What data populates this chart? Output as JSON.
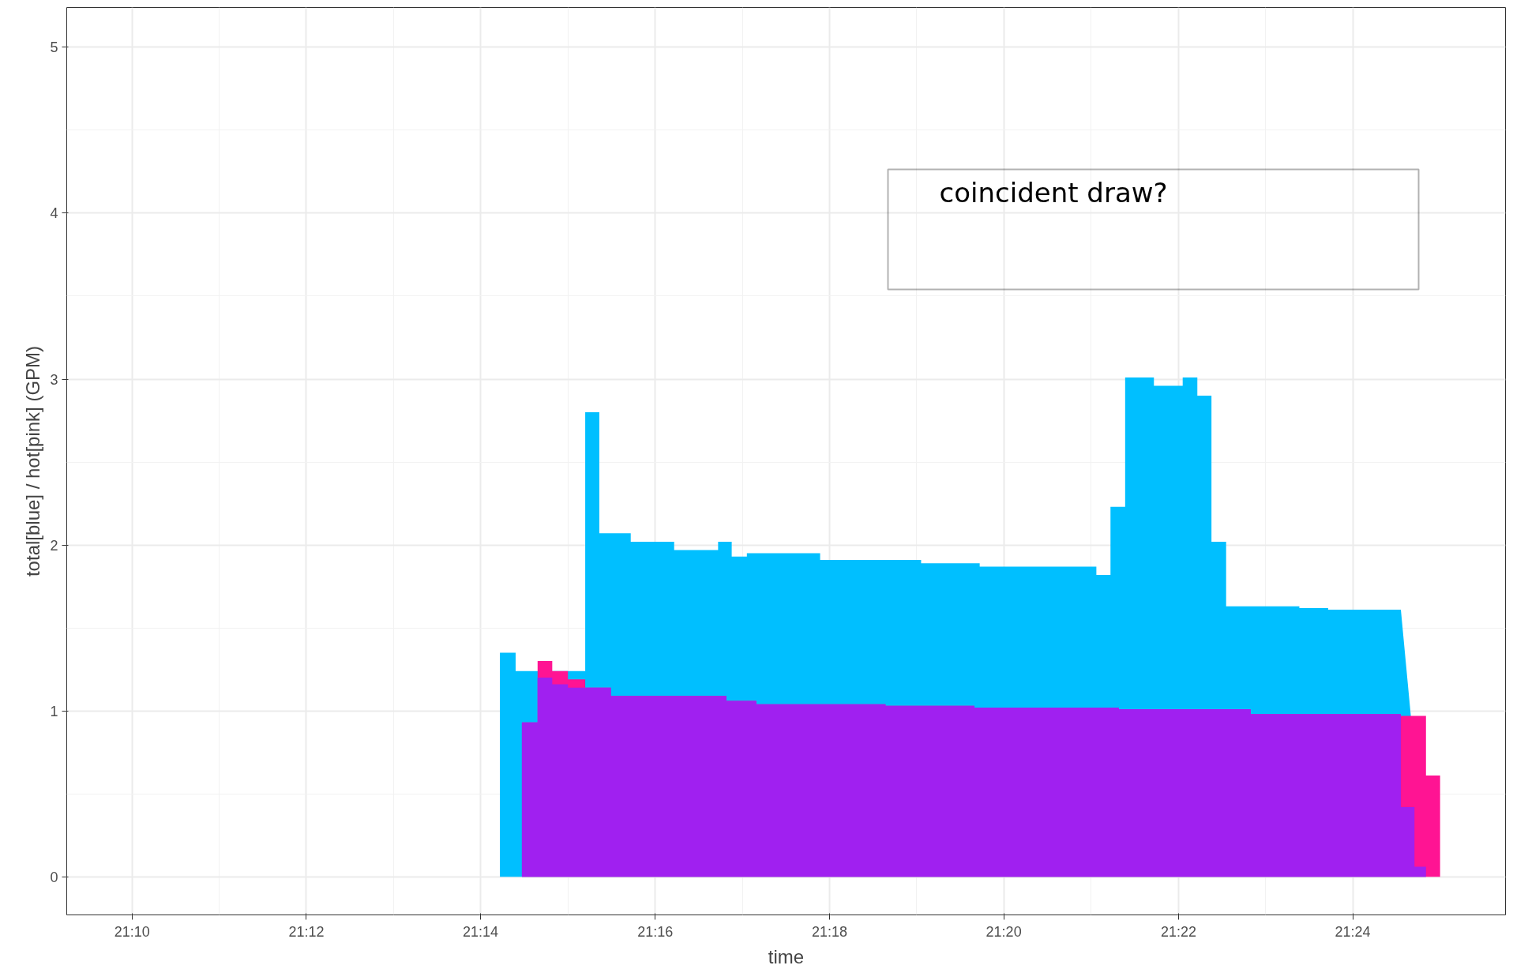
{
  "chart_data": {
    "type": "area",
    "xlabel": "time",
    "ylabel": "total[blue] / hot[pink] (GPM)",
    "annotations": [
      "coincident draw?"
    ],
    "xlim": [
      21.1542,
      21.4292
    ],
    "ylim": [
      -0.23,
      5.24
    ],
    "xticks": [
      {
        "value": 21.1667,
        "label": "21:10"
      },
      {
        "value": 21.2,
        "label": "21:12"
      },
      {
        "value": 21.2333,
        "label": "21:14"
      },
      {
        "value": 21.2667,
        "label": "21:16"
      },
      {
        "value": 21.3,
        "label": "21:18"
      },
      {
        "value": 21.3333,
        "label": "21:20"
      },
      {
        "value": 21.3667,
        "label": "21:22"
      },
      {
        "value": 21.4,
        "label": "21:24"
      }
    ],
    "yticks": [
      0,
      1,
      2,
      3,
      4,
      5
    ],
    "grid": true,
    "series": [
      {
        "color": "#00bfff",
        "x": [
          21.1667,
          21.237,
          21.24,
          21.2533,
          21.256,
          21.262,
          21.2703,
          21.2787,
          21.2813,
          21.2842,
          21.2982,
          21.3175,
          21.3287,
          21.351,
          21.3537,
          21.3565,
          21.362,
          21.3675,
          21.3703,
          21.373,
          21.3758,
          21.3898,
          21.3953,
          21.4092,
          21.4118,
          21.414,
          21.4167
        ],
        "values": [
          0,
          1.35,
          1.24,
          2.8,
          2.07,
          2.02,
          1.97,
          2.02,
          1.93,
          1.95,
          1.91,
          1.89,
          1.87,
          1.82,
          2.23,
          3.01,
          2.96,
          3.01,
          2.9,
          2.02,
          1.63,
          1.62,
          1.61,
          null,
          null,
          0,
          0
        ]
      },
      {
        "color": "#ff1493",
        "x": [
          21.1667,
          21.2412,
          21.2442,
          21.247,
          21.25,
          21.2533,
          21.2582,
          21.2803,
          21.286,
          21.3107,
          21.3277,
          21.3553,
          21.3805,
          21.4092,
          21.414,
          21.4167
        ],
        "values": [
          0,
          0.93,
          1.3,
          1.24,
          1.19,
          1.14,
          1.09,
          1.06,
          1.04,
          1.03,
          1.02,
          1.01,
          0.98,
          0.97,
          0.61,
          0
        ]
      },
      {
        "color": "#a020f0",
        "x": [
          21.1667,
          21.2412,
          21.2442,
          21.247,
          21.25,
          21.2582,
          21.2803,
          21.286,
          21.3107,
          21.3277,
          21.3553,
          21.3805,
          21.4092,
          21.4118,
          21.414,
          21.4167
        ],
        "values": [
          0,
          0.93,
          1.2,
          1.16,
          1.14,
          1.09,
          1.06,
          1.04,
          1.03,
          1.02,
          1.01,
          0.98,
          0.42,
          0.06,
          0,
          0
        ]
      }
    ]
  }
}
